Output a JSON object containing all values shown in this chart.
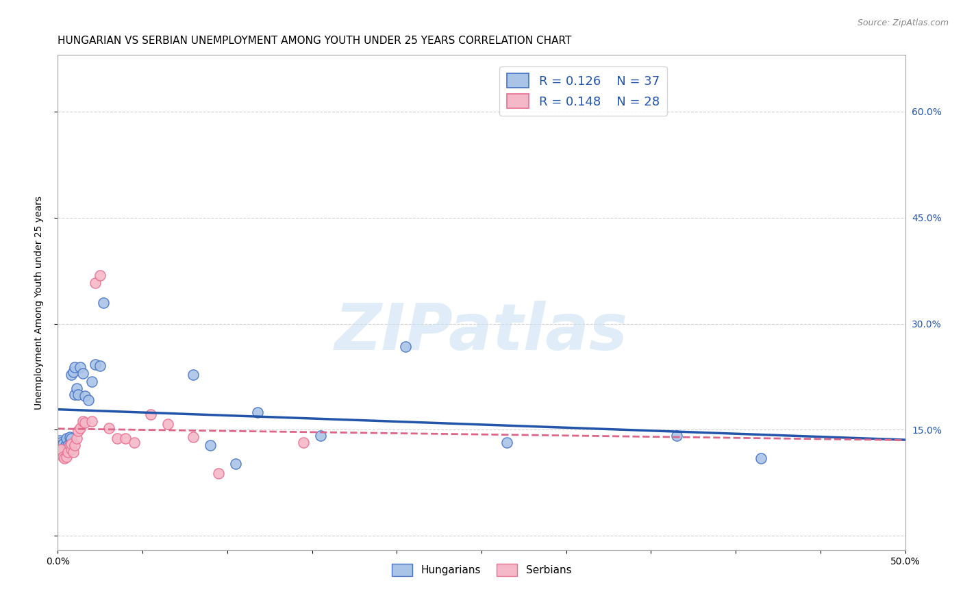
{
  "title": "HUNGARIAN VS SERBIAN UNEMPLOYMENT AMONG YOUTH UNDER 25 YEARS CORRELATION CHART",
  "source": "Source: ZipAtlas.com",
  "ylabel": "Unemployment Among Youth under 25 years",
  "xlim": [
    0.0,
    0.5
  ],
  "ylim": [
    -0.02,
    0.68
  ],
  "ytick_positions": [
    0.0,
    0.15,
    0.3,
    0.45,
    0.6
  ],
  "ytick_labels_right": [
    "",
    "15.0%",
    "30.0%",
    "45.0%",
    "60.0%"
  ],
  "xtick_positions": [
    0.0,
    0.05,
    0.1,
    0.15,
    0.2,
    0.25,
    0.3,
    0.35,
    0.4,
    0.45,
    0.5
  ],
  "xtick_labels": [
    "0.0%",
    "",
    "",
    "",
    "",
    "",
    "",
    "",
    "",
    "",
    "50.0%"
  ],
  "hungarian_color": "#aac4e8",
  "serbian_color": "#f5b8c8",
  "hungarian_edge_color": "#4472c4",
  "serbian_edge_color": "#e87090",
  "hungarian_line_color": "#2255aa",
  "serbian_line_color": "#dd6688",
  "R_hungarian": 0.126,
  "N_hungarian": 37,
  "R_serbian": 0.148,
  "N_serbian": 28,
  "watermark": "ZIPatlas",
  "hungarian_x": [
    0.001,
    0.002,
    0.002,
    0.003,
    0.003,
    0.004,
    0.004,
    0.005,
    0.005,
    0.006,
    0.006,
    0.007,
    0.007,
    0.008,
    0.008,
    0.009,
    0.01,
    0.01,
    0.011,
    0.012,
    0.013,
    0.015,
    0.016,
    0.018,
    0.02,
    0.022,
    0.025,
    0.027,
    0.08,
    0.09,
    0.105,
    0.118,
    0.155,
    0.205,
    0.265,
    0.365,
    0.415
  ],
  "hungarian_y": [
    0.135,
    0.132,
    0.128,
    0.122,
    0.13,
    0.125,
    0.12,
    0.13,
    0.138,
    0.128,
    0.12,
    0.128,
    0.14,
    0.138,
    0.228,
    0.232,
    0.238,
    0.2,
    0.208,
    0.2,
    0.238,
    0.23,
    0.198,
    0.192,
    0.218,
    0.242,
    0.24,
    0.33,
    0.228,
    0.128,
    0.102,
    0.175,
    0.142,
    0.268,
    0.132,
    0.142,
    0.11
  ],
  "serbian_x": [
    0.001,
    0.002,
    0.003,
    0.004,
    0.005,
    0.006,
    0.007,
    0.008,
    0.008,
    0.009,
    0.01,
    0.011,
    0.012,
    0.013,
    0.015,
    0.016,
    0.02,
    0.022,
    0.025,
    0.03,
    0.035,
    0.04,
    0.045,
    0.055,
    0.065,
    0.08,
    0.095,
    0.145
  ],
  "serbian_y": [
    0.118,
    0.122,
    0.112,
    0.11,
    0.112,
    0.118,
    0.128,
    0.122,
    0.13,
    0.118,
    0.128,
    0.138,
    0.148,
    0.152,
    0.162,
    0.16,
    0.162,
    0.358,
    0.368,
    0.152,
    0.138,
    0.138,
    0.132,
    0.172,
    0.158,
    0.14,
    0.088,
    0.132
  ],
  "background_color": "#ffffff",
  "grid_color": "#cccccc",
  "title_fontsize": 11,
  "axis_label_fontsize": 10,
  "tick_fontsize": 10,
  "legend_fontsize": 13,
  "marker_size": 120
}
